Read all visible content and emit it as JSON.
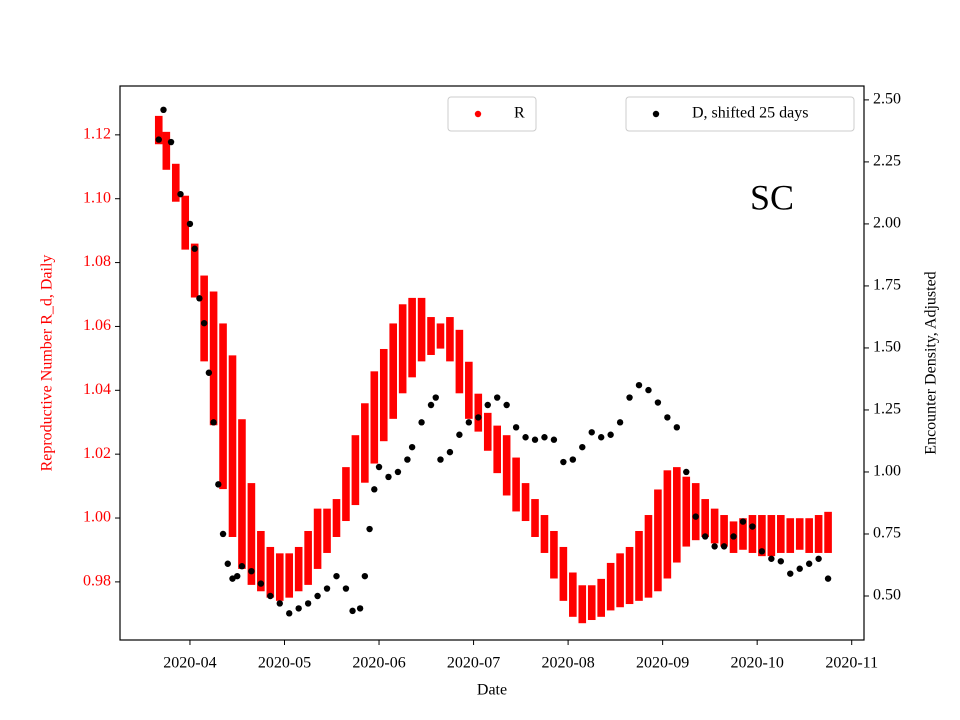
{
  "chart_data": {
    "type": "dual-scatter",
    "annotation": "SC",
    "x_label": "Date",
    "y_label": "Reproductive Number R_d, Daily",
    "y2_label": "Encounter Density, Adjusted",
    "xlim": [
      3.26,
      11.13
    ],
    "xticks": [
      {
        "value": 4,
        "label": "2020-04"
      },
      {
        "value": 5,
        "label": "2020-05"
      },
      {
        "value": 6,
        "label": "2020-06"
      },
      {
        "value": 7,
        "label": "2020-07"
      },
      {
        "value": 8,
        "label": "2020-08"
      },
      {
        "value": 9,
        "label": "2020-09"
      },
      {
        "value": 10,
        "label": "2020-10"
      },
      {
        "value": 11,
        "label": "2020-11"
      }
    ],
    "ylim": [
      0.9618,
      1.1353
    ],
    "yticks": [
      0.98,
      {
        "value": 1,
        "label": "1.00"
      },
      1.02,
      1.04,
      1.06,
      1.08,
      {
        "value": 1.1,
        "label": "1.10"
      },
      1.12
    ],
    "y2lim": [
      0.3226,
      2.556
    ],
    "y2ticks": [
      {
        "value": 0.5,
        "label": "0.50"
      },
      0.75,
      {
        "value": 1,
        "label": "1.00"
      },
      1.25,
      {
        "value": 1.5,
        "label": "1.50"
      },
      1.75,
      {
        "value": 2,
        "label": "2.00"
      },
      2.25,
      {
        "value": 2.5,
        "label": "2.50"
      }
    ],
    "series": [
      {
        "name": "R",
        "color": "#ff0000",
        "axis": "y",
        "x": [
          3.67,
          3.75,
          3.85,
          3.95,
          4.05,
          4.15,
          4.25,
          4.35,
          4.45,
          4.55,
          4.65,
          4.75,
          4.85,
          4.95,
          5.05,
          5.15,
          5.25,
          5.35,
          5.45,
          5.55,
          5.65,
          5.75,
          5.85,
          5.95,
          6.05,
          6.15,
          6.25,
          6.35,
          6.45,
          6.55,
          6.65,
          6.75,
          6.85,
          6.95,
          7.05,
          7.15,
          7.25,
          7.35,
          7.45,
          7.55,
          7.65,
          7.75,
          7.85,
          7.95,
          8.05,
          8.15,
          8.25,
          8.35,
          8.45,
          8.55,
          8.65,
          8.75,
          8.85,
          8.95,
          9.05,
          9.15,
          9.25,
          9.35,
          9.45,
          9.55,
          9.65,
          9.75,
          9.85,
          9.95,
          10.05,
          10.15,
          10.25,
          10.35,
          10.45,
          10.55,
          10.65,
          10.75
        ],
        "values": [
          [
            1.118,
            1.125
          ],
          [
            1.11,
            1.12
          ],
          [
            1.1,
            1.11
          ],
          [
            1.085,
            1.1
          ],
          [
            1.07,
            1.085
          ],
          [
            1.05,
            1.075
          ],
          [
            1.03,
            1.07
          ],
          [
            1.01,
            1.06
          ],
          [
            0.995,
            1.05
          ],
          [
            0.985,
            1.03
          ],
          [
            0.98,
            1.01
          ],
          [
            0.978,
            0.995
          ],
          [
            0.976,
            0.99
          ],
          [
            0.975,
            0.988
          ],
          [
            0.976,
            0.988
          ],
          [
            0.978,
            0.99
          ],
          [
            0.98,
            0.995
          ],
          [
            0.985,
            1.002
          ],
          [
            0.99,
            1.002
          ],
          [
            0.995,
            1.005
          ],
          [
            1,
            1.015
          ],
          [
            1.005,
            1.025
          ],
          [
            1.012,
            1.035
          ],
          [
            1.018,
            1.045
          ],
          [
            1.025,
            1.052
          ],
          [
            1.032,
            1.06
          ],
          [
            1.04,
            1.066
          ],
          [
            1.045,
            1.068
          ],
          [
            1.05,
            1.068
          ],
          [
            1.052,
            1.062
          ],
          [
            1.054,
            1.06
          ],
          [
            1.05,
            1.062
          ],
          [
            1.04,
            1.058
          ],
          [
            1.032,
            1.048
          ],
          [
            1.028,
            1.038
          ],
          [
            1.022,
            1.032
          ],
          [
            1.015,
            1.028
          ],
          [
            1.008,
            1.025
          ],
          [
            1.003,
            1.018
          ],
          [
            1,
            1.01
          ],
          [
            0.995,
            1.005
          ],
          [
            0.99,
            1
          ],
          [
            0.982,
            0.995
          ],
          [
            0.975,
            0.99
          ],
          [
            0.97,
            0.982
          ],
          [
            0.968,
            0.978
          ],
          [
            0.969,
            0.978
          ],
          [
            0.97,
            0.98
          ],
          [
            0.972,
            0.985
          ],
          [
            0.973,
            0.988
          ],
          [
            0.974,
            0.99
          ],
          [
            0.975,
            0.995
          ],
          [
            0.976,
            1
          ],
          [
            0.978,
            1.008
          ],
          [
            0.982,
            1.014
          ],
          [
            0.987,
            1.015
          ],
          [
            0.992,
            1.012
          ],
          [
            0.994,
            1.01
          ],
          [
            0.995,
            1.005
          ],
          [
            0.993,
            1.002
          ],
          [
            0.992,
            1
          ],
          [
            0.99,
            0.998
          ],
          [
            0.991,
            0.999
          ],
          [
            0.99,
            1
          ],
          [
            0.989,
            1
          ],
          [
            0.989,
            1
          ],
          [
            0.99,
            1
          ],
          [
            0.99,
            0.999
          ],
          [
            0.991,
            0.999
          ],
          [
            0.99,
            0.999
          ],
          [
            0.99,
            1
          ],
          [
            0.99,
            1.001
          ]
        ]
      },
      {
        "name": "D, shifted 25 days",
        "color": "#000000",
        "axis": "y2",
        "x": [
          3.67,
          3.72,
          3.8,
          3.9,
          4.0,
          4.05,
          4.1,
          4.15,
          4.2,
          4.25,
          4.3,
          4.35,
          4.4,
          4.45,
          4.5,
          4.55,
          4.65,
          4.75,
          4.85,
          4.95,
          5.05,
          5.15,
          5.25,
          5.35,
          5.45,
          5.55,
          5.65,
          5.72,
          5.8,
          5.85,
          5.9,
          5.95,
          6.0,
          6.1,
          6.2,
          6.3,
          6.35,
          6.45,
          6.55,
          6.6,
          6.65,
          6.75,
          6.85,
          6.95,
          7.05,
          7.15,
          7.25,
          7.35,
          7.45,
          7.55,
          7.65,
          7.75,
          7.85,
          7.95,
          8.05,
          8.15,
          8.25,
          8.35,
          8.45,
          8.55,
          8.65,
          8.75,
          8.85,
          8.95,
          9.05,
          9.15,
          9.25,
          9.35,
          9.45,
          9.55,
          9.65,
          9.75,
          9.85,
          9.95,
          10.05,
          10.15,
          10.25,
          10.35,
          10.45,
          10.55,
          10.65,
          10.75
        ],
        "values": [
          2.34,
          2.46,
          2.33,
          2.12,
          2.0,
          1.9,
          1.7,
          1.6,
          1.4,
          1.2,
          0.95,
          0.75,
          0.63,
          0.57,
          0.58,
          0.62,
          0.6,
          0.55,
          0.5,
          0.47,
          0.43,
          0.45,
          0.47,
          0.5,
          0.53,
          0.58,
          0.53,
          0.44,
          0.45,
          0.58,
          0.77,
          0.93,
          1.02,
          0.98,
          1.0,
          1.05,
          1.1,
          1.2,
          1.27,
          1.3,
          1.05,
          1.08,
          1.15,
          1.2,
          1.22,
          1.27,
          1.3,
          1.27,
          1.18,
          1.14,
          1.13,
          1.14,
          1.13,
          1.04,
          1.05,
          1.1,
          1.16,
          1.14,
          1.15,
          1.2,
          1.3,
          1.35,
          1.33,
          1.28,
          1.22,
          1.18,
          1.0,
          0.82,
          0.74,
          0.7,
          0.7,
          0.74,
          0.8,
          0.78,
          0.68,
          0.65,
          0.64,
          0.59,
          0.61,
          0.63,
          0.65,
          0.57
        ]
      }
    ]
  }
}
